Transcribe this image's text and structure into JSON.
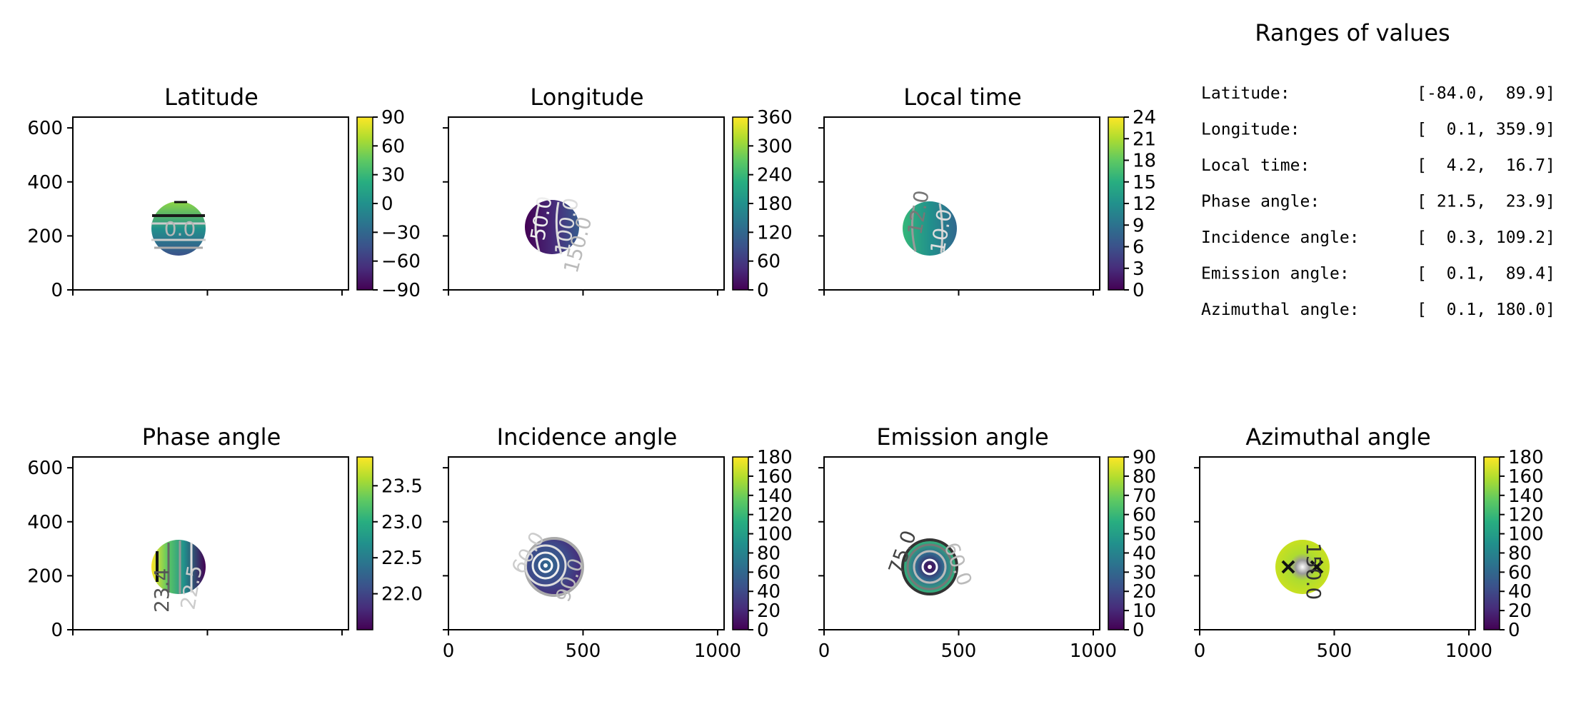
{
  "figure": {
    "ranges_title": "Ranges of values",
    "ranges": [
      {
        "label": "Latitude:",
        "range": "[-84.0,  89.9]"
      },
      {
        "label": "Longitude:",
        "range": "[  0.1, 359.9]"
      },
      {
        "label": "Local time:",
        "range": "[  4.2,  16.7]"
      },
      {
        "label": "Phase angle:",
        "range": "[ 21.5,  23.9]"
      },
      {
        "label": "Incidence angle:",
        "range": "[  0.3, 109.2]"
      },
      {
        "label": "Emission angle:",
        "range": "[  0.1,  89.4]"
      },
      {
        "label": "Azimuthal angle:",
        "range": "[  0.1, 180.0]"
      }
    ]
  },
  "chart_data": [
    {
      "type": "heatmap",
      "title": "Latitude",
      "xlim": [
        0,
        1024
      ],
      "ylim": [
        0,
        640
      ],
      "x_ticks": [
        0,
        500,
        1000
      ],
      "x_tick_labels_shown": false,
      "y_ticks": [
        0,
        200,
        400,
        600
      ],
      "y_tick_labels_shown": true,
      "colormap": "viridis",
      "colorbar": {
        "min": -90,
        "max": 90,
        "ticks": [
          90,
          60,
          30,
          0,
          -30,
          -60,
          -90
        ],
        "tick_labels": [
          "90",
          "60",
          "30",
          "0",
          "−30",
          "−60",
          "−90"
        ]
      },
      "contour_labels": [
        "0.0"
      ]
    },
    {
      "type": "heatmap",
      "title": "Longitude",
      "xlim": [
        0,
        1024
      ],
      "ylim": [
        0,
        640
      ],
      "x_ticks": [
        0,
        500,
        1000
      ],
      "x_tick_labels_shown": false,
      "y_ticks": [
        0,
        200,
        400,
        600
      ],
      "y_tick_labels_shown": false,
      "colormap": "viridis",
      "colorbar": {
        "min": 0,
        "max": 360,
        "ticks": [
          360,
          300,
          240,
          180,
          120,
          60,
          0
        ],
        "tick_labels": [
          "360",
          "300",
          "240",
          "180",
          "120",
          "60",
          "0"
        ]
      },
      "contour_labels": [
        "50.0",
        "100.0",
        "150.0"
      ]
    },
    {
      "type": "heatmap",
      "title": "Local time",
      "xlim": [
        0,
        1024
      ],
      "ylim": [
        0,
        640
      ],
      "x_ticks": [
        0,
        500,
        1000
      ],
      "x_tick_labels_shown": false,
      "y_ticks": [
        0,
        200,
        400,
        600
      ],
      "y_tick_labels_shown": false,
      "colormap": "viridis",
      "colorbar": {
        "min": 0,
        "max": 24,
        "ticks": [
          24,
          21,
          18,
          15,
          12,
          9,
          6,
          3,
          0
        ],
        "tick_labels": [
          "24",
          "21",
          "18",
          "15",
          "12",
          "9",
          "6",
          "3",
          "0"
        ]
      },
      "contour_labels": [
        "12.0",
        "10.0"
      ]
    },
    {
      "type": "heatmap",
      "title": "Phase angle",
      "xlim": [
        0,
        1024
      ],
      "ylim": [
        0,
        640
      ],
      "x_ticks": [
        0,
        500,
        1000
      ],
      "x_tick_labels_shown": false,
      "y_ticks": [
        0,
        200,
        400,
        600
      ],
      "y_tick_labels_shown": true,
      "colormap": "viridis",
      "colorbar": {
        "min": 21.5,
        "max": 23.9,
        "ticks": [
          23.5,
          23.0,
          22.5,
          22.0
        ],
        "tick_labels": [
          "23.5",
          "23.0",
          "22.5",
          "22.0"
        ]
      },
      "contour_labels": [
        "23.4",
        "22.5"
      ]
    },
    {
      "type": "heatmap",
      "title": "Incidence angle",
      "xlim": [
        0,
        1024
      ],
      "ylim": [
        0,
        640
      ],
      "x_ticks": [
        0,
        500,
        1000
      ],
      "x_tick_labels_shown": true,
      "y_ticks": [
        0,
        200,
        400,
        600
      ],
      "y_tick_labels_shown": false,
      "colormap": "viridis",
      "colorbar": {
        "min": 0,
        "max": 180,
        "ticks": [
          180,
          160,
          140,
          120,
          100,
          80,
          60,
          40,
          20,
          0
        ],
        "tick_labels": [
          "180",
          "160",
          "140",
          "120",
          "100",
          "80",
          "60",
          "40",
          "20",
          "0"
        ]
      },
      "contour_labels": [
        "60.0",
        "90.0"
      ]
    },
    {
      "type": "heatmap",
      "title": "Emission angle",
      "xlim": [
        0,
        1024
      ],
      "ylim": [
        0,
        640
      ],
      "x_ticks": [
        0,
        500,
        1000
      ],
      "x_tick_labels_shown": true,
      "y_ticks": [
        0,
        200,
        400,
        600
      ],
      "y_tick_labels_shown": false,
      "colormap": "viridis",
      "colorbar": {
        "min": 0,
        "max": 90,
        "ticks": [
          90,
          80,
          70,
          60,
          50,
          40,
          30,
          20,
          10,
          0
        ],
        "tick_labels": [
          "90",
          "80",
          "70",
          "60",
          "50",
          "40",
          "30",
          "20",
          "10",
          "0"
        ]
      },
      "contour_labels": [
        "75.0",
        "60.0"
      ]
    },
    {
      "type": "heatmap",
      "title": "Azimuthal angle",
      "xlim": [
        0,
        1024
      ],
      "ylim": [
        0,
        640
      ],
      "x_ticks": [
        0,
        500,
        1000
      ],
      "x_tick_labels_shown": true,
      "y_ticks": [
        0,
        200,
        400,
        600
      ],
      "y_tick_labels_shown": false,
      "colormap": "viridis",
      "colorbar": {
        "min": 0,
        "max": 180,
        "ticks": [
          180,
          160,
          140,
          120,
          100,
          80,
          60,
          40,
          20,
          0
        ],
        "tick_labels": [
          "180",
          "160",
          "140",
          "120",
          "100",
          "80",
          "60",
          "40",
          "20",
          "0"
        ]
      },
      "contour_labels": [
        "150.0"
      ]
    }
  ]
}
